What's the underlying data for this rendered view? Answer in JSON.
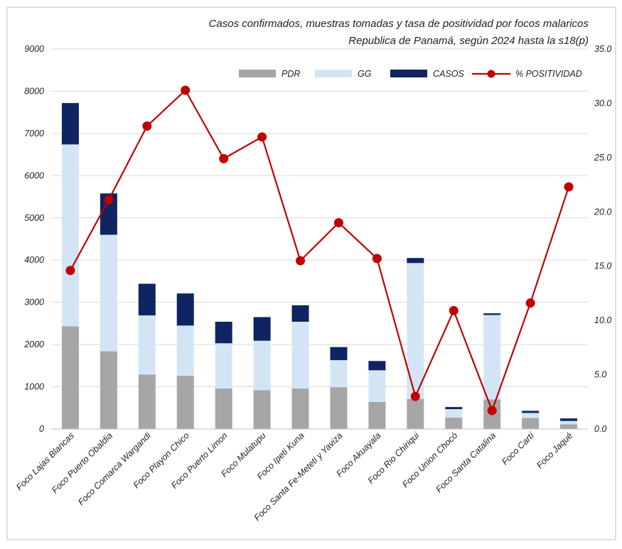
{
  "chart_data": {
    "type": "bar",
    "stacked": true,
    "title": "Casos confirmados, muestras tomadas y  tasa de positividad por focos malaricos",
    "subtitle": "Republica de Panamá, según 2024 hasta la s18(p)",
    "xlabel": "",
    "ylabel": "",
    "y2label": "",
    "ylim": [
      0,
      9000
    ],
    "y2lim": [
      0,
      35
    ],
    "yticks": [
      "0",
      "1000",
      "2000",
      "3000",
      "4000",
      "5000",
      "6000",
      "7000",
      "8000",
      "9000"
    ],
    "y2ticks": [
      "0.0",
      "5.0",
      "10.0",
      "15.0",
      "20.0",
      "25.0",
      "30.0",
      "35.0"
    ],
    "grid": true,
    "legend_position": "top",
    "categories": [
      "Foco Lajas Blancas",
      "Foco Puerto Obaldia",
      "Foco Comarca Wargandi",
      "Foco Playon Chico",
      "Foco Puerto Limon",
      "Foco Mulatupu",
      "Foco Ipeti Kuna",
      "Foco Santa Fe-Meteti y Yaviza",
      "Foco Akuayala",
      "Foco Rio Chiriqui",
      "Foco Union Chocó",
      "Foco Santa Catalina",
      "Foco Cartí",
      "Foco Jaqué"
    ],
    "series": [
      {
        "name": "PDR",
        "kind": "bar",
        "axis": "left",
        "color": "#a6a6a6",
        "values": [
          2430,
          1840,
          1290,
          1260,
          960,
          920,
          960,
          990,
          640,
          710,
          270,
          700,
          260,
          110
        ]
      },
      {
        "name": "GG",
        "kind": "bar",
        "axis": "left",
        "color": "#d3e5f5",
        "values": [
          4310,
          2760,
          1400,
          1190,
          1070,
          1170,
          1580,
          640,
          750,
          3220,
          200,
          2000,
          120,
          80
        ]
      },
      {
        "name": "CASOS",
        "kind": "bar",
        "axis": "left",
        "color": "#0f2462",
        "values": [
          980,
          980,
          750,
          760,
          510,
          560,
          390,
          310,
          220,
          120,
          50,
          40,
          50,
          60
        ]
      },
      {
        "name": "% POSITIVIDAD",
        "kind": "line",
        "axis": "right",
        "color": "#c00000",
        "values": [
          14.6,
          21.1,
          27.9,
          31.2,
          24.9,
          26.9,
          15.5,
          19.0,
          15.7,
          3.0,
          10.9,
          1.7,
          11.6,
          22.3
        ]
      }
    ]
  }
}
